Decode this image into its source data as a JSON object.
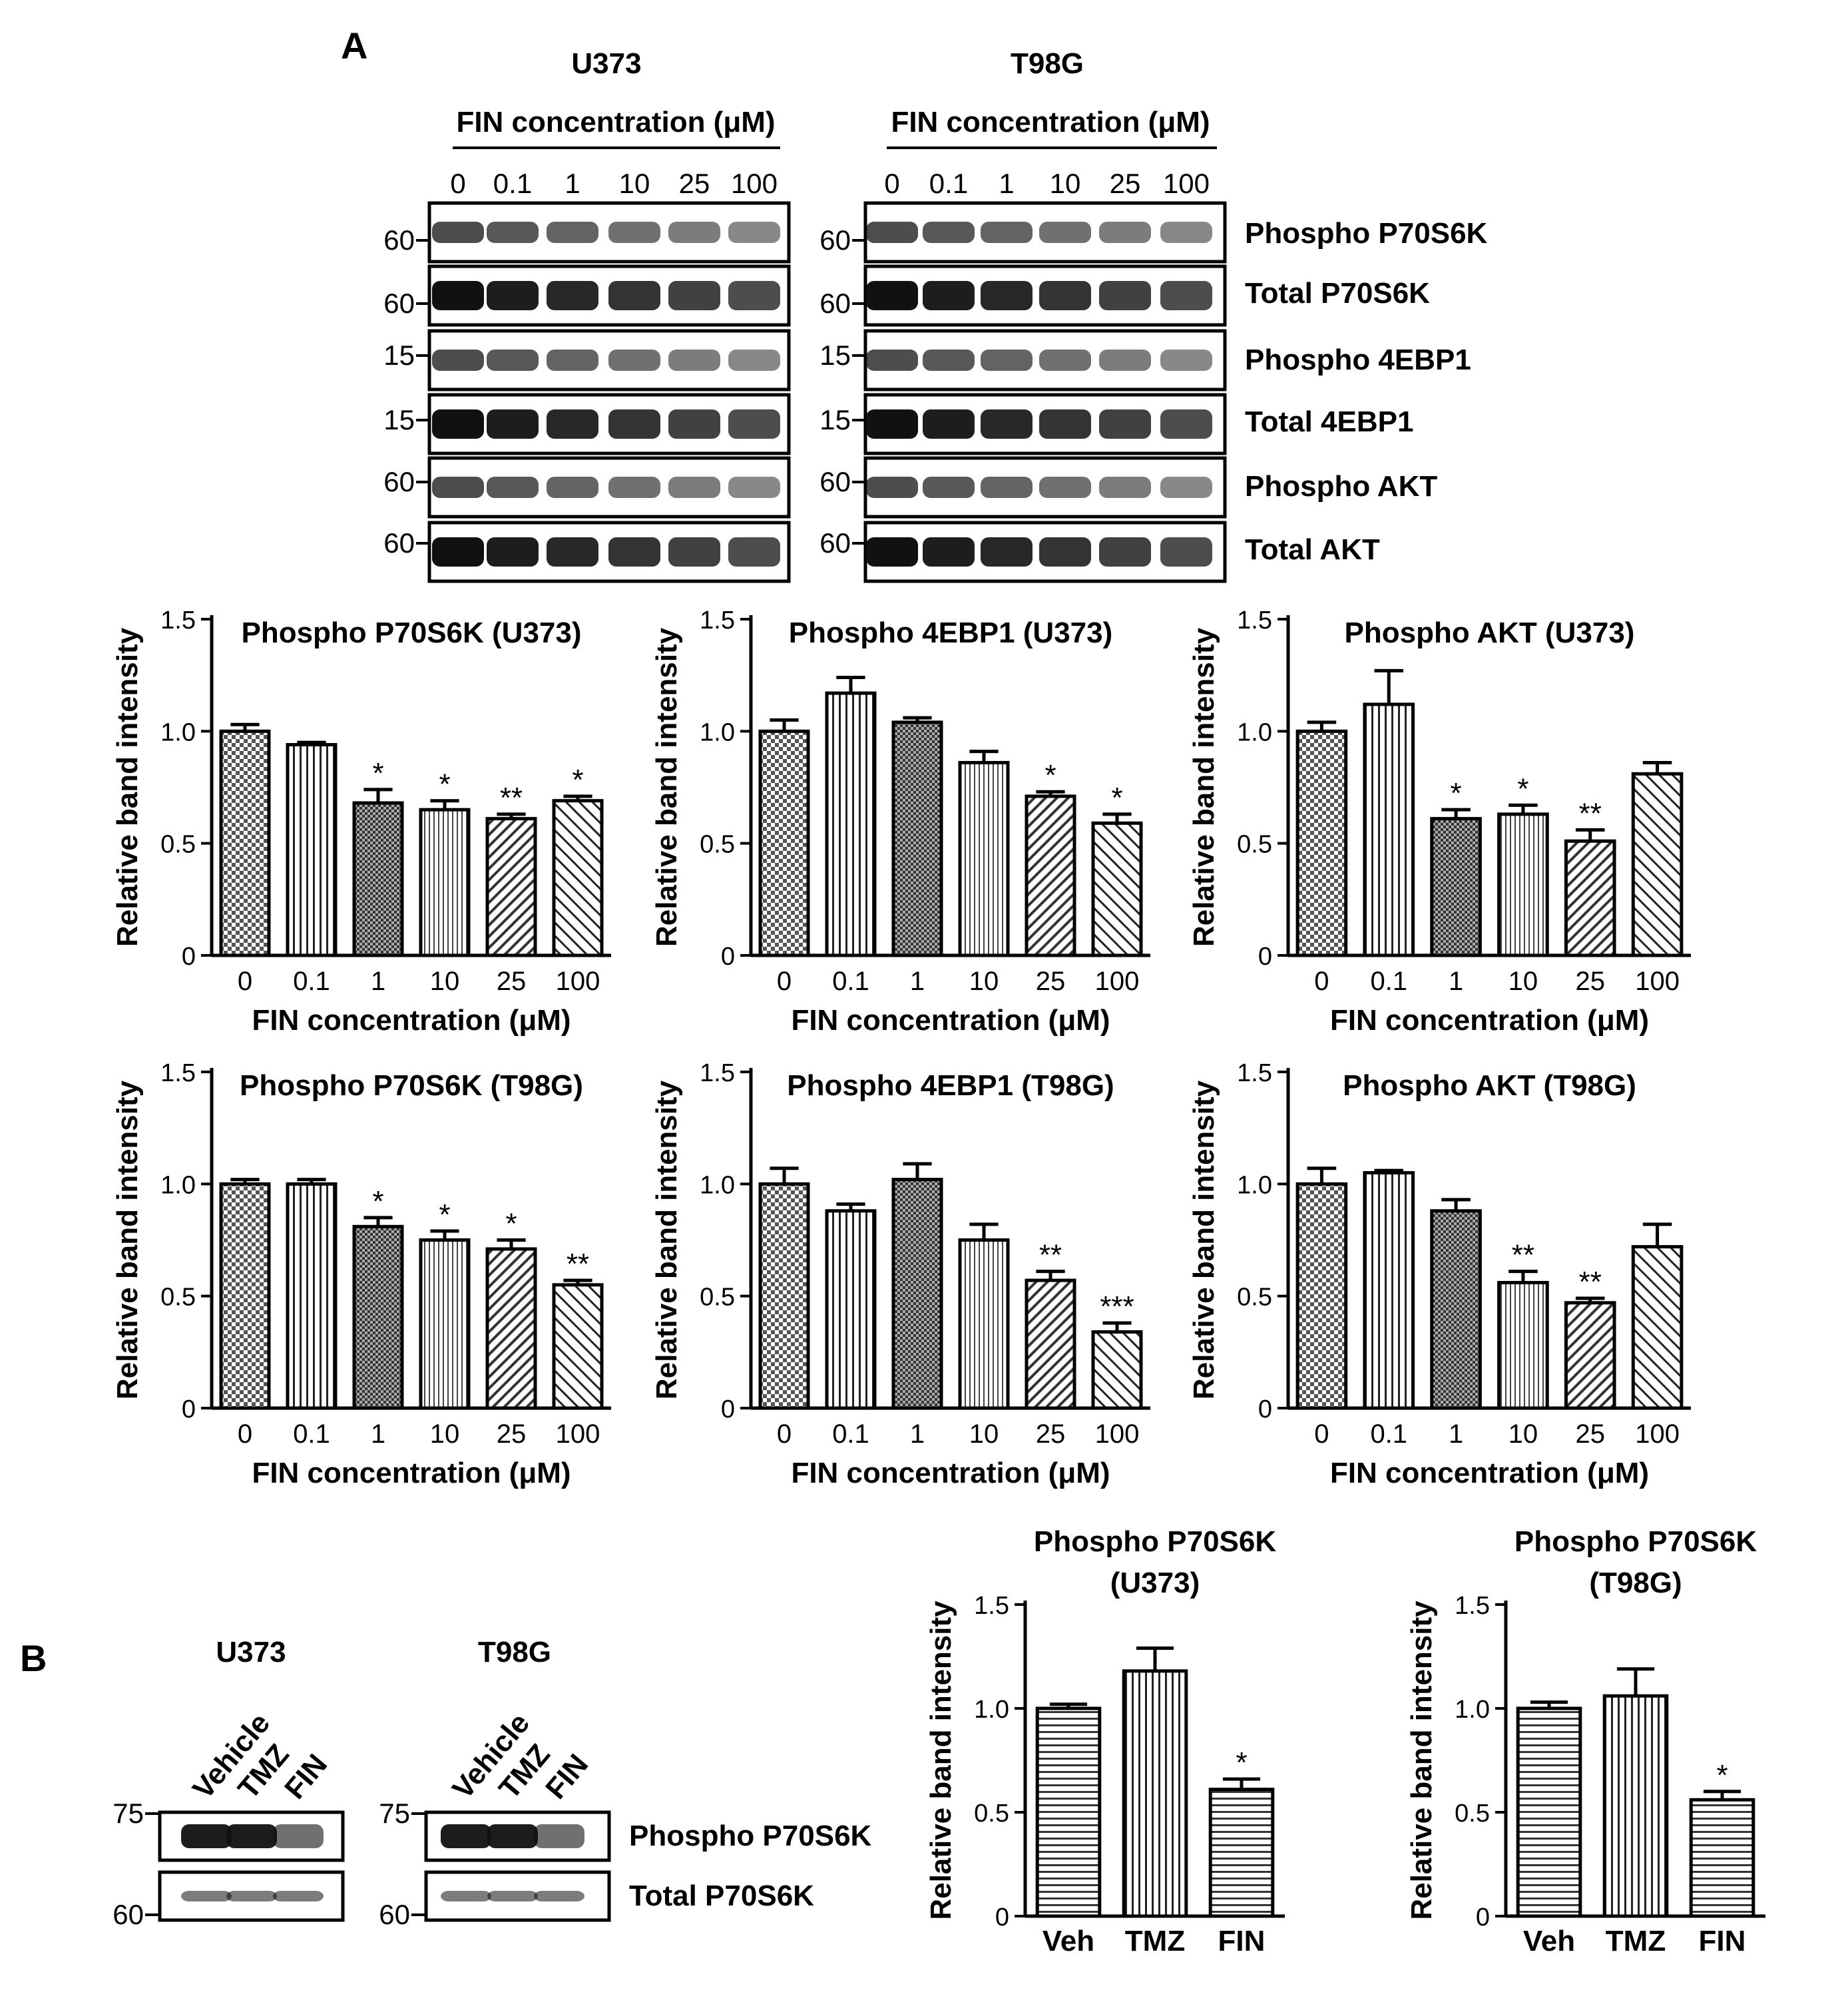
{
  "panel_a": {
    "letter": "A",
    "blot_groups": [
      {
        "cell_line": "U373",
        "axis_title": "FIN concentration (μM)",
        "lanes": [
          "0",
          "0.1",
          "1",
          "10",
          "25",
          "100"
        ],
        "mw_markers": [
          "60",
          "60",
          "15",
          "15",
          "60",
          "60"
        ]
      },
      {
        "cell_line": "T98G",
        "axis_title": "FIN concentration (μM)",
        "lanes": [
          "0",
          "0.1",
          "1",
          "10",
          "25",
          "100"
        ],
        "mw_markers": [
          "60",
          "60",
          "15",
          "15",
          "60",
          "60"
        ]
      }
    ],
    "blot_labels": [
      "Phospho P70S6K",
      "Total P70S6K",
      "Phospho 4EBP1",
      "Total 4EBP1",
      "Phospho AKT",
      "Total AKT"
    ]
  },
  "panel_b": {
    "letter": "B",
    "blot_groups": [
      {
        "cell_line": "U373",
        "lanes": [
          "Vehicle",
          "TMZ",
          "FIN"
        ],
        "mw_markers": [
          "75",
          "60"
        ]
      },
      {
        "cell_line": "T98G",
        "lanes": [
          "Vehicle",
          "TMZ",
          "FIN"
        ],
        "mw_markers": [
          "75",
          "60"
        ]
      }
    ],
    "blot_labels": [
      "Phospho P70S6K",
      "Total P70S6K"
    ]
  },
  "chart_data": [
    {
      "type": "bar",
      "title": "Phospho P70S6K (U373)",
      "xlabel": "FIN concentration (μM)",
      "ylabel": "Relative band intensity",
      "categories": [
        "0",
        "0.1",
        "1",
        "10",
        "25",
        "100"
      ],
      "values": [
        1.0,
        0.94,
        0.68,
        0.65,
        0.61,
        0.69
      ],
      "errors": [
        0.03,
        0.01,
        0.06,
        0.04,
        0.02,
        0.02
      ],
      "significance": [
        "",
        "",
        "*",
        "*",
        "**",
        "*"
      ],
      "ylim": [
        0,
        1.5
      ],
      "yticks": [
        "0",
        "0.5",
        "1.0",
        "1.5"
      ]
    },
    {
      "type": "bar",
      "title": "Phospho 4EBP1 (U373)",
      "xlabel": "FIN concentration (μM)",
      "ylabel": "Relative band intensity",
      "categories": [
        "0",
        "0.1",
        "1",
        "10",
        "25",
        "100"
      ],
      "values": [
        1.0,
        1.17,
        1.04,
        0.86,
        0.71,
        0.59
      ],
      "errors": [
        0.05,
        0.07,
        0.02,
        0.05,
        0.02,
        0.04
      ],
      "significance": [
        "",
        "",
        "",
        "",
        "*",
        "*"
      ],
      "ylim": [
        0,
        1.5
      ],
      "yticks": [
        "0",
        "0.5",
        "1.0",
        "1.5"
      ]
    },
    {
      "type": "bar",
      "title": "Phospho AKT (U373)",
      "xlabel": "FIN concentration (μM)",
      "ylabel": "Relative band intensity",
      "categories": [
        "0",
        "0.1",
        "1",
        "10",
        "25",
        "100"
      ],
      "values": [
        1.0,
        1.12,
        0.61,
        0.63,
        0.51,
        0.81
      ],
      "errors": [
        0.04,
        0.15,
        0.04,
        0.04,
        0.05,
        0.05
      ],
      "significance": [
        "",
        "",
        "*",
        "*",
        "**",
        ""
      ],
      "ylim": [
        0,
        1.5
      ],
      "yticks": [
        "0",
        "0.5",
        "1.0",
        "1.5"
      ]
    },
    {
      "type": "bar",
      "title": "Phospho P70S6K (T98G)",
      "xlabel": "FIN concentration (μM)",
      "ylabel": "Relative band intensity",
      "categories": [
        "0",
        "0.1",
        "1",
        "10",
        "25",
        "100"
      ],
      "values": [
        1.0,
        1.0,
        0.81,
        0.75,
        0.71,
        0.55
      ],
      "errors": [
        0.02,
        0.02,
        0.04,
        0.04,
        0.04,
        0.02
      ],
      "significance": [
        "",
        "",
        "*",
        "*",
        "*",
        "**"
      ],
      "ylim": [
        0,
        1.5
      ],
      "yticks": [
        "0",
        "0.5",
        "1.0",
        "1.5"
      ]
    },
    {
      "type": "bar",
      "title": "Phospho 4EBP1 (T98G)",
      "xlabel": "FIN concentration (μM)",
      "ylabel": "Relative band intensity",
      "categories": [
        "0",
        "0.1",
        "1",
        "10",
        "25",
        "100"
      ],
      "values": [
        1.0,
        0.88,
        1.02,
        0.75,
        0.57,
        0.34
      ],
      "errors": [
        0.07,
        0.03,
        0.07,
        0.07,
        0.04,
        0.04
      ],
      "significance": [
        "",
        "",
        "",
        "",
        "**",
        "***"
      ],
      "ylim": [
        0,
        1.5
      ],
      "yticks": [
        "0",
        "0.5",
        "1.0",
        "1.5"
      ]
    },
    {
      "type": "bar",
      "title": "Phospho AKT (T98G)",
      "xlabel": "FIN concentration (μM)",
      "ylabel": "Relative band intensity",
      "categories": [
        "0",
        "0.1",
        "1",
        "10",
        "25",
        "100"
      ],
      "values": [
        1.0,
        1.05,
        0.88,
        0.56,
        0.47,
        0.72
      ],
      "errors": [
        0.07,
        0.01,
        0.05,
        0.05,
        0.02,
        0.1
      ],
      "significance": [
        "",
        "",
        "",
        "**",
        "**",
        ""
      ],
      "ylim": [
        0,
        1.5
      ],
      "yticks": [
        "0",
        "0.5",
        "1.0",
        "1.5"
      ]
    },
    {
      "type": "bar",
      "title": "Phospho P70S6K",
      "title2": "(U373)",
      "xlabel": "",
      "ylabel": "Relative band intensity",
      "categories": [
        "Veh",
        "TMZ",
        "FIN"
      ],
      "values": [
        1.0,
        1.18,
        0.61
      ],
      "errors": [
        0.02,
        0.11,
        0.05
      ],
      "significance": [
        "",
        "",
        "*"
      ],
      "ylim": [
        0,
        1.5
      ],
      "yticks": [
        "0",
        "0.5",
        "1.0",
        "1.5"
      ]
    },
    {
      "type": "bar",
      "title": "Phospho P70S6K",
      "title2": "(T98G)",
      "xlabel": "",
      "ylabel": "Relative band intensity",
      "categories": [
        "Veh",
        "TMZ",
        "FIN"
      ],
      "values": [
        1.0,
        1.06,
        0.56
      ],
      "errors": [
        0.03,
        0.13,
        0.04
      ],
      "significance": [
        "",
        "",
        "*"
      ],
      "ylim": [
        0,
        1.5
      ],
      "yticks": [
        "0",
        "0.5",
        "1.0",
        "1.5"
      ]
    }
  ]
}
